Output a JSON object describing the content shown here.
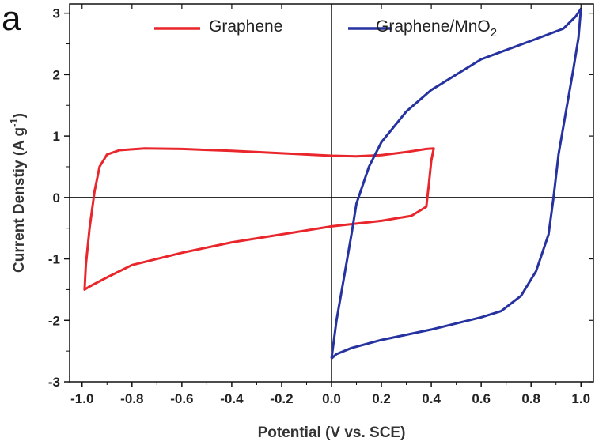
{
  "panel_label": "a",
  "chart_data": {
    "type": "line",
    "xlabel": "Potential (V vs. SCE)",
    "ylabel_main": "Current Denstiy (A g",
    "ylabel_exp": "-1",
    "ylabel_close": ")",
    "xlim": [
      -1.05,
      1.05
    ],
    "ylim": [
      -3,
      3.15
    ],
    "xticks": [
      -1.0,
      -0.8,
      -0.6,
      -0.4,
      -0.2,
      0.0,
      0.2,
      0.4,
      0.6,
      0.8,
      1.0
    ],
    "xtick_labels": [
      "-1.0",
      "-0.8",
      "-0.6",
      "-0.4",
      "-0.2",
      "0.0",
      "0.2",
      "0.4",
      "0.6",
      "0.8",
      "1.0"
    ],
    "yticks": [
      -3,
      -2,
      -1,
      0,
      1,
      2,
      3
    ],
    "ytick_labels": [
      "-3",
      "-2",
      "-1",
      "0",
      "1",
      "2",
      "3"
    ],
    "zero_lines": true,
    "legend_position": "top",
    "series": [
      {
        "name": "Graphene",
        "color": "#e8262b",
        "points": [
          [
            0.0,
            0.68
          ],
          [
            -0.2,
            0.72
          ],
          [
            -0.4,
            0.76
          ],
          [
            -0.6,
            0.79
          ],
          [
            -0.75,
            0.8
          ],
          [
            -0.85,
            0.77
          ],
          [
            -0.9,
            0.7
          ],
          [
            -0.93,
            0.5
          ],
          [
            -0.95,
            0.1
          ],
          [
            -0.97,
            -0.5
          ],
          [
            -0.985,
            -1.1
          ],
          [
            -0.99,
            -1.5
          ],
          [
            -0.97,
            -1.45
          ],
          [
            -0.9,
            -1.3
          ],
          [
            -0.8,
            -1.1
          ],
          [
            -0.6,
            -0.9
          ],
          [
            -0.4,
            -0.73
          ],
          [
            -0.2,
            -0.6
          ],
          [
            0.0,
            -0.47
          ],
          [
            0.2,
            -0.38
          ],
          [
            0.32,
            -0.3
          ],
          [
            0.38,
            -0.15
          ],
          [
            0.39,
            0.2
          ],
          [
            0.4,
            0.6
          ],
          [
            0.41,
            0.8
          ],
          [
            0.38,
            0.79
          ],
          [
            0.3,
            0.74
          ],
          [
            0.2,
            0.69
          ],
          [
            0.1,
            0.67
          ],
          [
            0.0,
            0.68
          ]
        ]
      },
      {
        "name": "Graphene/MnO",
        "name_subscript": "2",
        "color": "#2632a0",
        "points": [
          [
            0.0,
            -2.62
          ],
          [
            0.02,
            -2.0
          ],
          [
            0.05,
            -1.3
          ],
          [
            0.08,
            -0.6
          ],
          [
            0.1,
            -0.1
          ],
          [
            0.15,
            0.5
          ],
          [
            0.2,
            0.9
          ],
          [
            0.3,
            1.4
          ],
          [
            0.4,
            1.75
          ],
          [
            0.6,
            2.25
          ],
          [
            0.8,
            2.55
          ],
          [
            0.93,
            2.75
          ],
          [
            0.98,
            2.95
          ],
          [
            1.0,
            3.07
          ],
          [
            0.99,
            2.6
          ],
          [
            0.97,
            2.1
          ],
          [
            0.94,
            1.4
          ],
          [
            0.91,
            0.7
          ],
          [
            0.89,
            0.0
          ],
          [
            0.87,
            -0.6
          ],
          [
            0.82,
            -1.2
          ],
          [
            0.76,
            -1.6
          ],
          [
            0.68,
            -1.85
          ],
          [
            0.6,
            -1.95
          ],
          [
            0.4,
            -2.15
          ],
          [
            0.2,
            -2.32
          ],
          [
            0.08,
            -2.45
          ],
          [
            0.02,
            -2.55
          ],
          [
            0.0,
            -2.62
          ]
        ]
      }
    ]
  }
}
